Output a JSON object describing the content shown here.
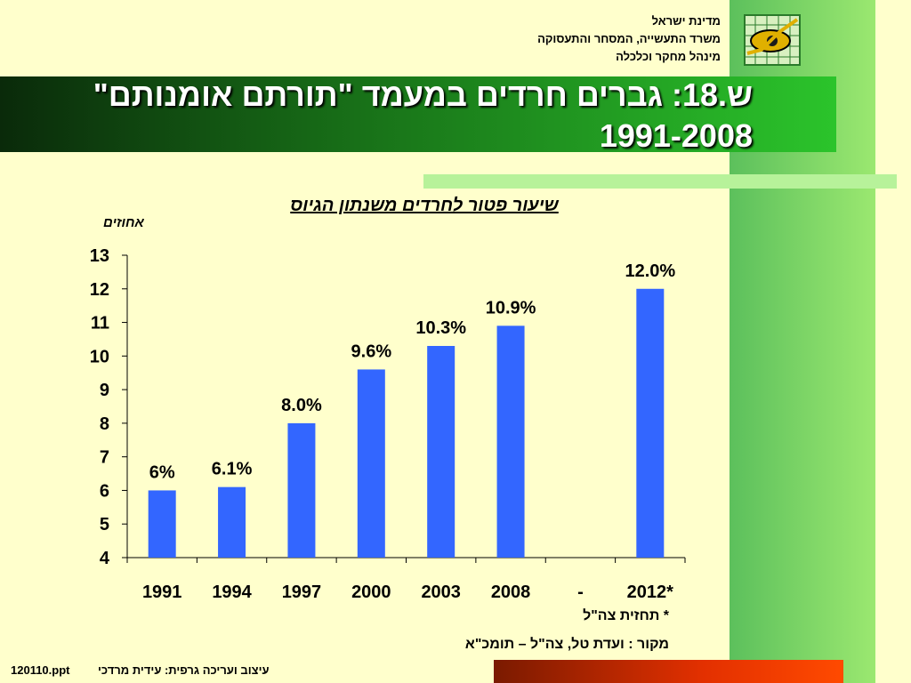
{
  "header": {
    "org_line1": "מדינת ישראל",
    "org_line2": "משרד התעשייה, המסחר והתעסוקה",
    "org_line3": "מינהל מחקר וכלכלה"
  },
  "title": {
    "line1": "ש.18: גברים חרדים במעמד \"תורתם אומנותם\"",
    "line2": "1991-2008"
  },
  "chart_data": {
    "type": "bar",
    "title": "שיעור פטור לחרדים משנתון הגיוס",
    "ylabel": "אחוזים",
    "xlabel": "",
    "ylim": [
      4,
      13
    ],
    "yticks": [
      4,
      5,
      6,
      7,
      8,
      9,
      10,
      11,
      12,
      13
    ],
    "categories": [
      "1991",
      "1994",
      "1997",
      "2000",
      "2003",
      "2008",
      "-",
      "2012*"
    ],
    "values": [
      6.0,
      6.1,
      8.0,
      9.6,
      10.3,
      10.9,
      null,
      12.0
    ],
    "data_labels": [
      "6%",
      "6.1%",
      "8.0%",
      "9.6%",
      "10.3%",
      "10.9%",
      "",
      "12.0%"
    ],
    "bar_color": "#3366ff",
    "grid": false
  },
  "notes": {
    "forecast": "* תחזית צה\"ל",
    "source": "מקור : ועדת טל, צה\"ל – תומכ\"א"
  },
  "footer": {
    "filename": "120110.ppt",
    "credit": "עיצוב ועריכה גרפית: עידית מרדכי"
  },
  "colors": {
    "background": "#ffffcc",
    "title_green": "#2bc42b",
    "side_strip": "#7ad86a",
    "footer_red": "#e33000"
  }
}
